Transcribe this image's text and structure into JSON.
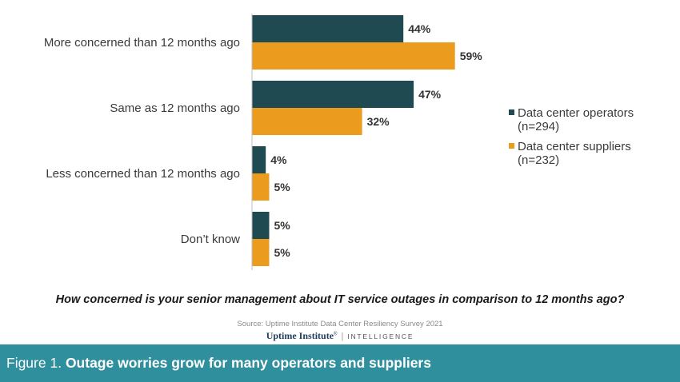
{
  "chart_data": {
    "type": "bar",
    "orientation": "horizontal",
    "categories": [
      "More concerned than 12 months ago",
      "Same as 12 months ago",
      "Less concerned than 12 months ago",
      "Don’t know"
    ],
    "series": [
      {
        "name_lines": [
          "Data center operators",
          "(n=294)"
        ],
        "values": [
          44,
          47,
          4,
          5
        ],
        "color": "#1f4a52"
      },
      {
        "name_lines": [
          "Data center suppliers",
          "(n=232)"
        ],
        "values": [
          59,
          32,
          5,
          5
        ],
        "color": "#eb9c1e"
      }
    ],
    "value_suffix": "%",
    "xlim": [
      0,
      100
    ],
    "grid": false,
    "legend_position": "right",
    "xlabel": "How concerned is your senior management about IT service outages in comparison to 12 months ago?"
  },
  "source": "Source: Uptime Institute Data Center Resiliency Survey 2021",
  "brand": {
    "name": "Uptime Institute",
    "mark": "®",
    "sub": "INTELLIGENCE"
  },
  "footer": {
    "prefix": "Figure 1. ",
    "title": "Outage worries grow for many operators and suppliers"
  }
}
